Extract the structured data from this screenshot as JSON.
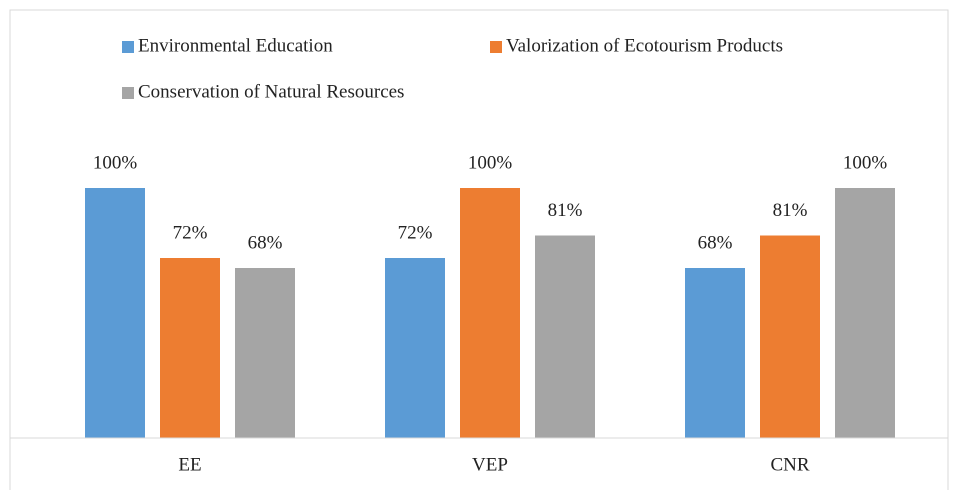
{
  "chart_data": {
    "type": "bar",
    "categories": [
      "EE",
      "VEP",
      "CNR"
    ],
    "series": [
      {
        "name": "Environmental Education",
        "color": "#5b9bd5",
        "values": [
          100,
          72,
          68
        ],
        "value_labels": [
          "100%",
          "72%",
          "68%"
        ]
      },
      {
        "name": "Valorization of Ecotourism Products",
        "color": "#ed7d31",
        "values": [
          72,
          100,
          81
        ],
        "value_labels": [
          "72%",
          "100%",
          "81%"
        ]
      },
      {
        "name": "Conservation of Natural Resources",
        "color": "#a5a5a5",
        "values": [
          68,
          81,
          100
        ],
        "value_labels": [
          "68%",
          "81%",
          "100%"
        ]
      }
    ],
    "legend": "top"
  }
}
